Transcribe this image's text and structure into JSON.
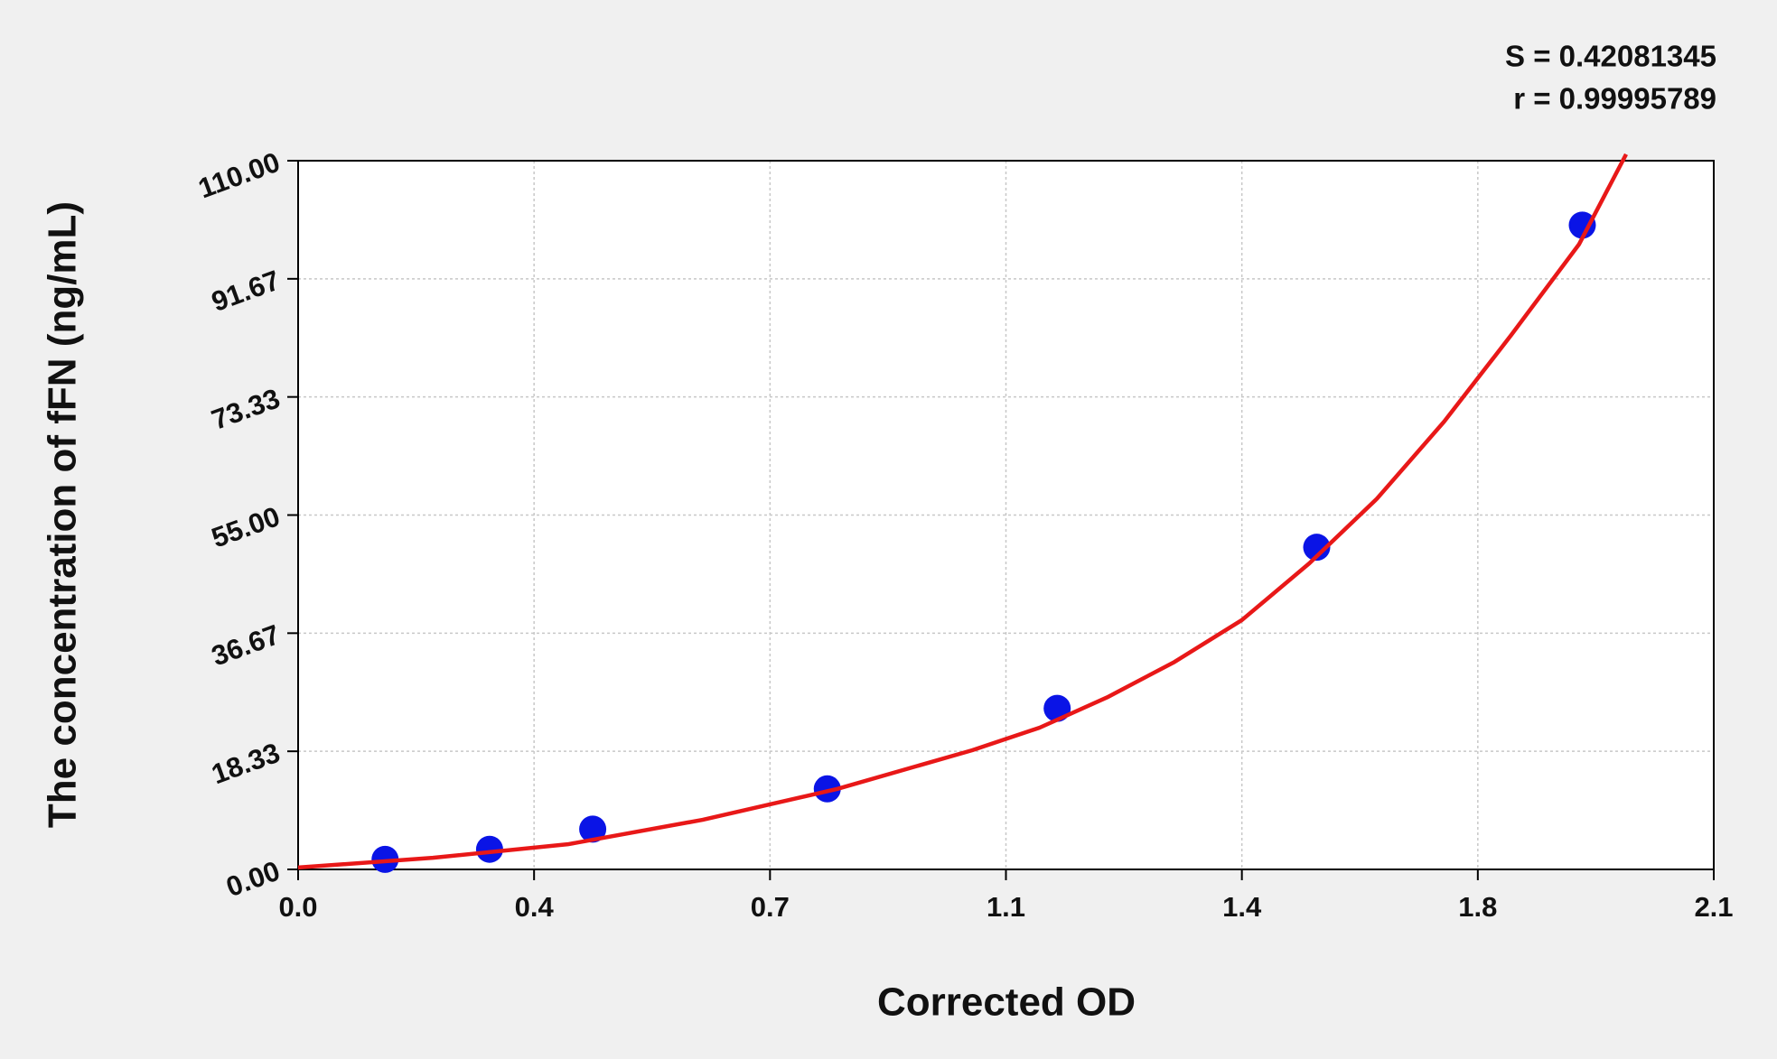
{
  "chart_data": {
    "type": "scatter",
    "annotations": [
      "S = 0.42081345",
      "r = 0.99995789"
    ],
    "xlabel": "Corrected OD",
    "ylabel": "The concentration of fFN (ng/mL)",
    "xlim": [
      0,
      2.1
    ],
    "xticks": [
      {
        "value": 0,
        "label": "0.0"
      },
      {
        "value": 0.35,
        "label": "0.4"
      },
      0.7,
      {
        "value": 1.05,
        "label": "1.1"
      },
      1.4,
      {
        "value": 1.75,
        "label": "1.8"
      },
      2.1
    ],
    "ylim": [
      0,
      110
    ],
    "yticks": [
      {
        "value": 0,
        "label": "0.00"
      },
      {
        "value": 18.333,
        "label": "18.33"
      },
      {
        "value": 36.667,
        "label": "36.67"
      },
      {
        "value": 55,
        "label": "55.00"
      },
      {
        "value": 73.333,
        "label": "73.33"
      },
      {
        "value": 91.667,
        "label": "91.67"
      },
      {
        "value": 110,
        "label": "110.00"
      }
    ],
    "grid": true,
    "series": [
      {
        "type": "scatter",
        "color": "#0a14e6",
        "x": [
          0.129,
          0.284,
          0.437,
          0.785,
          1.126,
          1.511,
          1.905
        ],
        "values": [
          1.56,
          3.125,
          6.25,
          12.5,
          25,
          50,
          100
        ]
      },
      {
        "type": "line",
        "color": "#e81818",
        "x": [
          0,
          0.2,
          0.4,
          0.6,
          0.8,
          1.0,
          1.1,
          1.2,
          1.3,
          1.4,
          1.5,
          1.6,
          1.7,
          1.8,
          1.9,
          1.97
        ],
        "values": [
          0.3,
          1.8,
          3.9,
          7.7,
          12.5,
          18.5,
          22,
          26.7,
          32.2,
          38.7,
          47.5,
          57.5,
          69.5,
          83,
          97,
          111
        ]
      }
    ]
  }
}
